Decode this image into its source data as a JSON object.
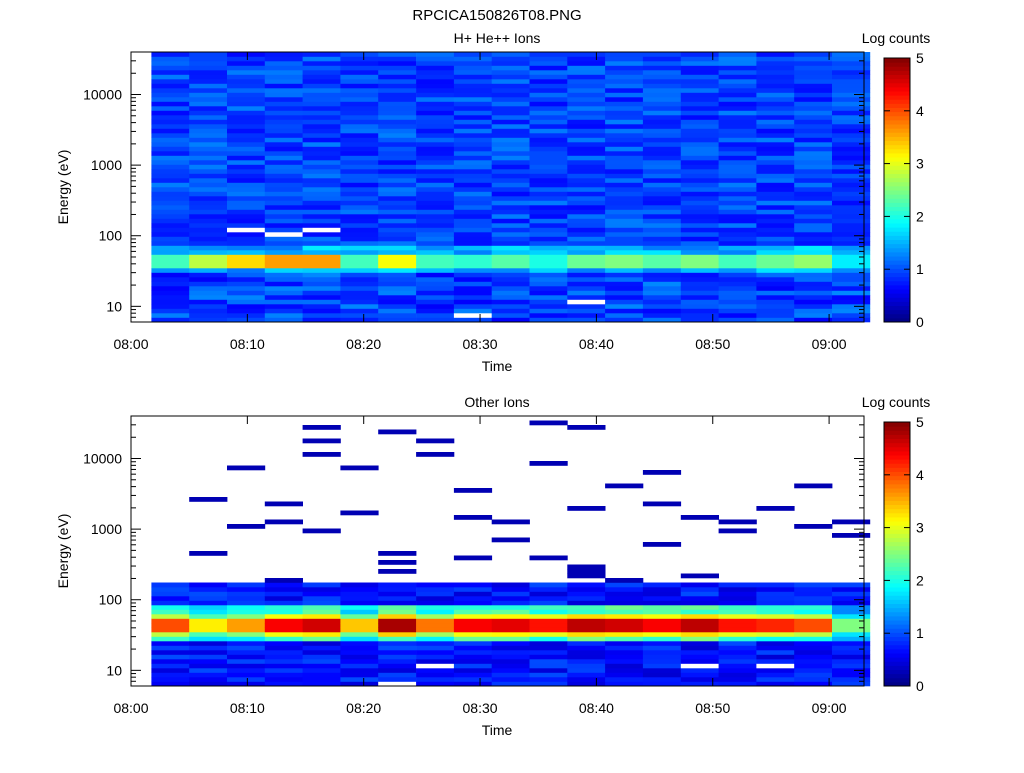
{
  "page_title": "RPCICA150826T08.PNG",
  "chart_data": [
    {
      "type": "heatmap",
      "title": "H+ He++ Ions",
      "xlabel": "Time",
      "ylabel": "Energy (eV)",
      "y_scale": "log",
      "ylim": [
        6,
        40000
      ],
      "xlim": [
        "08:00",
        "09:03"
      ],
      "x_ticks": [
        "08:00",
        "08:10",
        "08:20",
        "08:30",
        "08:40",
        "08:50",
        "09:00"
      ],
      "y_ticks": [
        "10",
        "100",
        "1000",
        "10000"
      ],
      "time_bins": [
        "08:01:45",
        "08:05:00",
        "08:08:15",
        "08:11:30",
        "08:14:45",
        "08:18:00",
        "08:21:15",
        "08:24:30",
        "08:27:45",
        "08:31:00",
        "08:34:15",
        "08:37:30",
        "08:40:45",
        "08:44:00",
        "08:47:15",
        "08:50:30",
        "08:53:45",
        "08:57:00",
        "09:00:15"
      ],
      "colorbar": {
        "label": "Log counts",
        "min": 0,
        "max": 5,
        "ticks": [
          "0",
          "1",
          "2",
          "3",
          "4",
          "5"
        ]
      },
      "profile": {
        "low": [
          0.6,
          0.9
        ],
        "peak_energy_ev": 45,
        "peak_values": [
          2.2,
          2.8,
          3.3,
          3.6,
          3.6,
          2.2,
          3.1,
          2.2,
          2.1,
          2.3,
          2.0,
          2.4,
          2.5,
          2.3,
          2.5,
          2.2,
          2.4,
          2.6,
          1.8
        ],
        "background": 0.95,
        "gaps": [
          [
            "08:27:45",
            "08:30:00",
            8
          ],
          [
            "08:37:30",
            "08:40:45",
            11
          ],
          [
            "08:08:15",
            "08:11:30",
            120
          ],
          [
            "08:11:30",
            "08:14:45",
            110
          ],
          [
            "08:14:45",
            "08:18:00",
            120
          ]
        ]
      }
    },
    {
      "type": "heatmap",
      "title": "Other Ions",
      "xlabel": "Time",
      "ylabel": "Energy (eV)",
      "y_scale": "log",
      "ylim": [
        6,
        40000
      ],
      "xlim": [
        "08:00",
        "09:03"
      ],
      "x_ticks": [
        "08:00",
        "08:10",
        "08:20",
        "08:30",
        "08:40",
        "08:50",
        "09:00"
      ],
      "y_ticks": [
        "10",
        "100",
        "1000",
        "10000"
      ],
      "time_bins": [
        "08:01:45",
        "08:05:00",
        "08:08:15",
        "08:11:30",
        "08:14:45",
        "08:18:00",
        "08:21:15",
        "08:24:30",
        "08:27:45",
        "08:31:00",
        "08:34:15",
        "08:37:30",
        "08:40:45",
        "08:44:00",
        "08:47:15",
        "08:50:30",
        "08:53:45",
        "08:57:00",
        "09:00:15"
      ],
      "colorbar": {
        "label": "Log counts",
        "min": 0,
        "max": 5,
        "ticks": [
          "0",
          "1",
          "2",
          "3",
          "4",
          "5"
        ]
      },
      "profile": {
        "peak_energy_ev": 45,
        "peak_values": [
          4.0,
          3.2,
          3.6,
          4.4,
          4.6,
          3.4,
          4.8,
          3.8,
          4.4,
          4.5,
          4.3,
          4.7,
          4.6,
          4.4,
          4.7,
          4.3,
          4.2,
          4.0,
          2.5
        ],
        "background": 0.4,
        "sparse_threshold_ev": 180,
        "gaps": [
          [
            "08:21:15",
            "08:24:30",
            6
          ],
          [
            "08:24:30",
            "08:27:45",
            11
          ],
          [
            "08:47:15",
            "08:50:30",
            11
          ],
          [
            "08:53:45",
            "08:57:00",
            11
          ]
        ]
      }
    }
  ]
}
